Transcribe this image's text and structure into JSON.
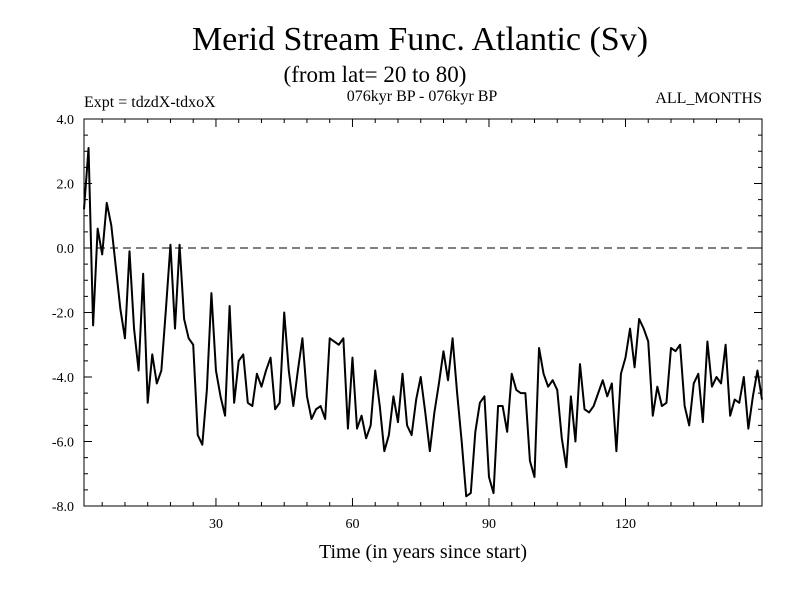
{
  "chart_data": {
    "type": "line",
    "title": "Merid Stream Func. Atlantic (Sv)",
    "subtitle": "(from lat= 20 to 80)",
    "left_label": "Expt = tdzdX-tdxoX",
    "center_label": "076kyr BP - 076kyr BP",
    "right_label": "ALL_MONTHS",
    "xlabel": "Time (in years since start)",
    "ylabel": "",
    "xlim": [
      1,
      150
    ],
    "ylim": [
      -8.0,
      4.0
    ],
    "x_ticks": [
      30,
      60,
      90,
      120
    ],
    "x_tick_labels": [
      "30",
      "60",
      "90",
      "120"
    ],
    "y_ticks": [
      4.0,
      2.0,
      0.0,
      -2.0,
      -4.0,
      -6.0,
      -8.0
    ],
    "y_tick_labels": [
      "4.0",
      "2.0",
      "0.0",
      "-2.0",
      "-4.0",
      "-6.0",
      "-8.0"
    ],
    "reference_line": {
      "y": 0.0,
      "style": "dashed"
    },
    "series": [
      {
        "name": "Merid Stream Func.",
        "color": "#000000",
        "x_start": 1,
        "x_step": 1,
        "values": [
          1.2,
          3.1,
          -2.4,
          0.6,
          -0.2,
          1.4,
          0.7,
          -0.6,
          -1.9,
          -2.8,
          -0.1,
          -2.5,
          -3.8,
          -0.8,
          -4.8,
          -3.3,
          -4.2,
          -3.8,
          -1.9,
          0.1,
          -2.5,
          0.1,
          -2.2,
          -2.8,
          -3.0,
          -5.8,
          -6.1,
          -4.4,
          -1.4,
          -3.8,
          -4.6,
          -5.2,
          -1.8,
          -4.8,
          -3.5,
          -3.3,
          -4.8,
          -4.9,
          -3.9,
          -4.3,
          -3.8,
          -3.4,
          -5.0,
          -4.8,
          -2.0,
          -3.8,
          -4.9,
          -3.8,
          -2.8,
          -4.6,
          -5.3,
          -5.0,
          -4.9,
          -5.3,
          -2.8,
          -2.9,
          -3.0,
          -2.8,
          -5.6,
          -3.4,
          -5.6,
          -5.2,
          -5.9,
          -5.5,
          -3.8,
          -4.9,
          -6.3,
          -5.8,
          -4.6,
          -5.4,
          -3.9,
          -5.5,
          -5.8,
          -4.7,
          -4.0,
          -5.1,
          -6.3,
          -5.1,
          -4.2,
          -3.2,
          -4.1,
          -2.8,
          -4.5,
          -6.0,
          -7.7,
          -7.6,
          -5.7,
          -4.8,
          -4.6,
          -7.1,
          -7.6,
          -4.9,
          -4.9,
          -5.7,
          -3.9,
          -4.4,
          -4.5,
          -4.5,
          -6.6,
          -7.1,
          -3.1,
          -3.9,
          -4.3,
          -4.1,
          -4.4,
          -5.9,
          -6.8,
          -4.6,
          -6.0,
          -3.6,
          -5.0,
          -5.1,
          -4.9,
          -4.5,
          -4.1,
          -4.6,
          -4.2,
          -6.3,
          -3.9,
          -3.4,
          -2.5,
          -3.7,
          -2.2,
          -2.5,
          -2.9,
          -5.2,
          -4.3,
          -4.9,
          -4.8,
          -3.1,
          -3.2,
          -3.0,
          -4.9,
          -5.5,
          -4.2,
          -3.9,
          -5.4,
          -2.9,
          -4.3,
          -4.0,
          -4.2,
          -3.0,
          -5.2,
          -4.7,
          -4.8,
          -4.0,
          -5.6,
          -4.6,
          -3.8,
          -4.7
        ]
      }
    ]
  }
}
